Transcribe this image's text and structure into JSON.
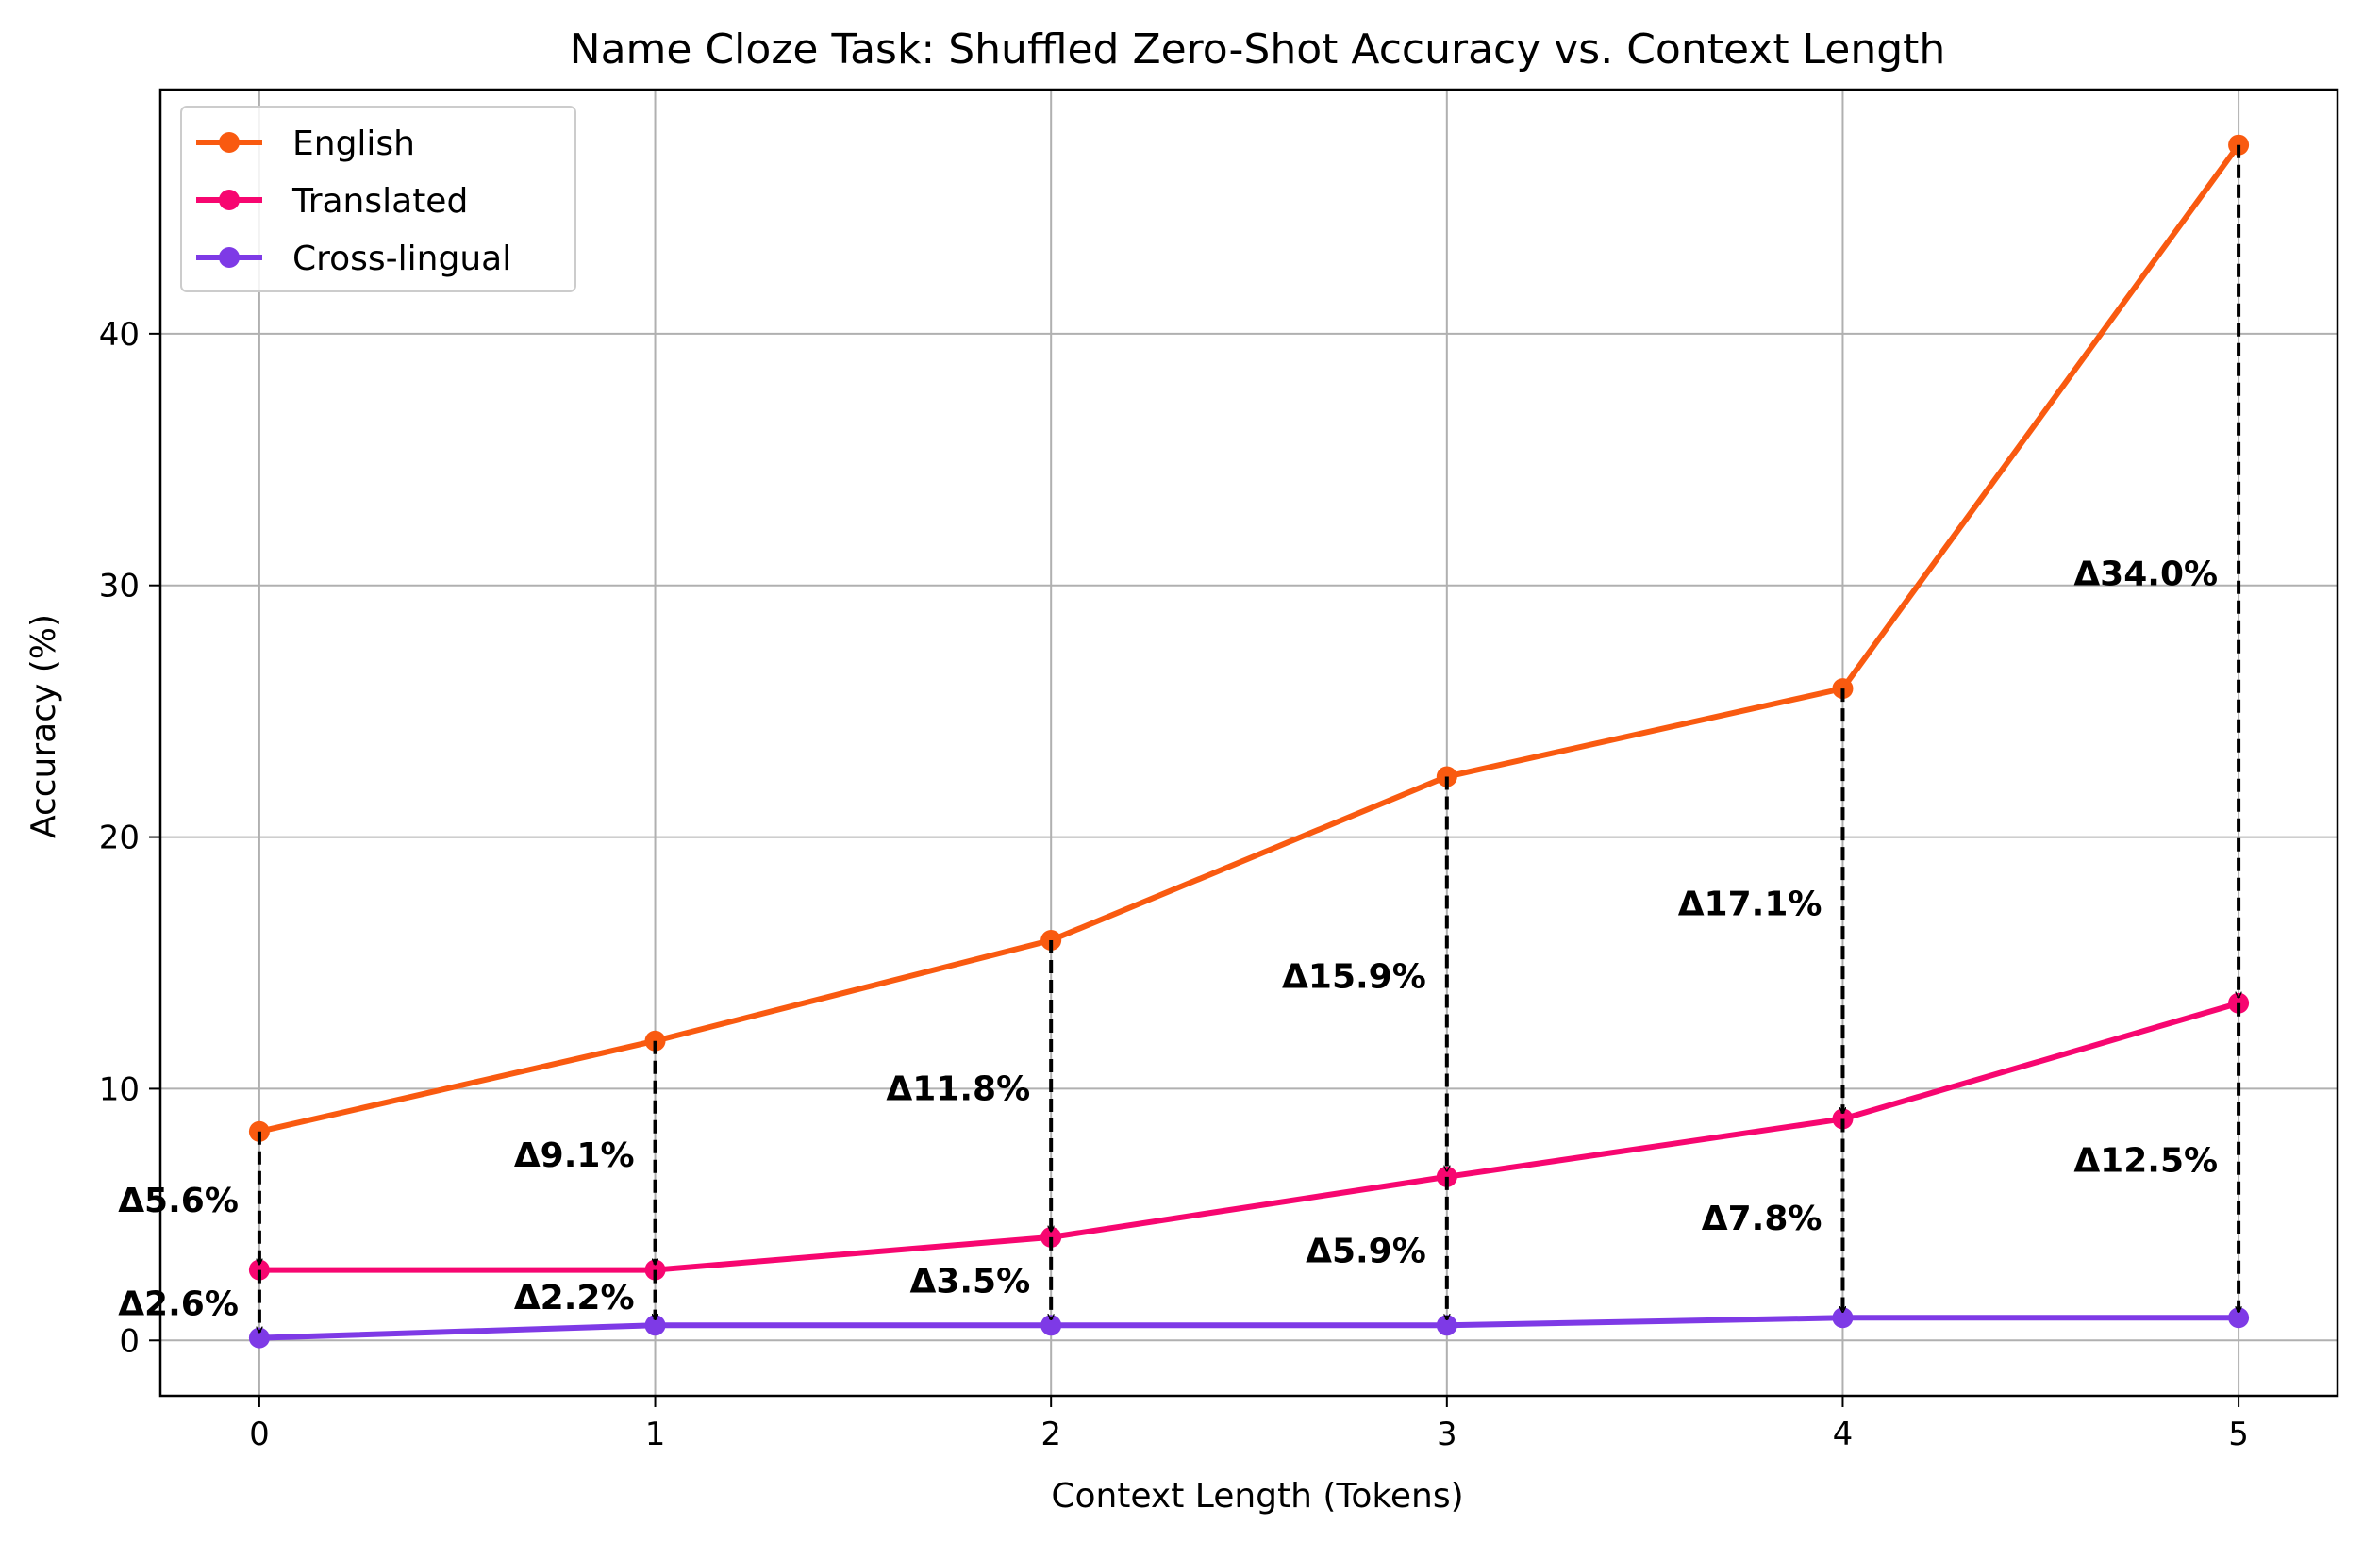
{
  "chart_data": {
    "type": "line",
    "title": "Name Cloze Task: Shuffled Zero-Shot Accuracy vs. Context Length",
    "xlabel": "Context Length (Tokens)",
    "ylabel": "Accuracy (%)",
    "x": [
      0,
      1,
      2,
      3,
      4,
      5
    ],
    "xlim": [
      -0.25,
      5.25
    ],
    "ylim": [
      -2.2,
      49.7
    ],
    "xticks": [
      0,
      1,
      2,
      3,
      4,
      5
    ],
    "yticks": [
      0,
      10,
      20,
      30,
      40
    ],
    "grid": true,
    "legend_position": "top-left",
    "series": [
      {
        "name": "English",
        "color": "#F95A10",
        "values": [
          8.3,
          11.9,
          15.9,
          22.4,
          25.9,
          47.5
        ]
      },
      {
        "name": "Translated",
        "color": "#F70670",
        "values": [
          2.8,
          2.8,
          4.1,
          6.5,
          8.8,
          13.4
        ]
      },
      {
        "name": "Cross-lingual",
        "color": "#7E3AE6",
        "values": [
          0.1,
          0.6,
          0.6,
          0.6,
          0.9,
          0.9
        ]
      }
    ],
    "annotations": [
      {
        "x": 0,
        "from": 8.3,
        "to": 2.8,
        "text": "Δ5.6%"
      },
      {
        "x": 0,
        "from": 2.8,
        "to": 0.1,
        "text": "Δ2.6%"
      },
      {
        "x": 1,
        "from": 11.9,
        "to": 2.8,
        "text": "Δ9.1%"
      },
      {
        "x": 1,
        "from": 2.8,
        "to": 0.6,
        "text": "Δ2.2%"
      },
      {
        "x": 2,
        "from": 15.9,
        "to": 4.1,
        "text": "Δ11.8%"
      },
      {
        "x": 2,
        "from": 4.1,
        "to": 0.6,
        "text": "Δ3.5%"
      },
      {
        "x": 3,
        "from": 22.4,
        "to": 6.5,
        "text": "Δ15.9%"
      },
      {
        "x": 3,
        "from": 6.5,
        "to": 0.6,
        "text": "Δ5.9%"
      },
      {
        "x": 4,
        "from": 25.9,
        "to": 8.8,
        "text": "Δ17.1%"
      },
      {
        "x": 4,
        "from": 8.8,
        "to": 0.9,
        "text": "Δ7.8%"
      },
      {
        "x": 5,
        "from": 47.5,
        "to": 13.4,
        "text": "Δ34.0%"
      },
      {
        "x": 5,
        "from": 13.4,
        "to": 0.9,
        "text": "Δ12.5%"
      }
    ]
  }
}
